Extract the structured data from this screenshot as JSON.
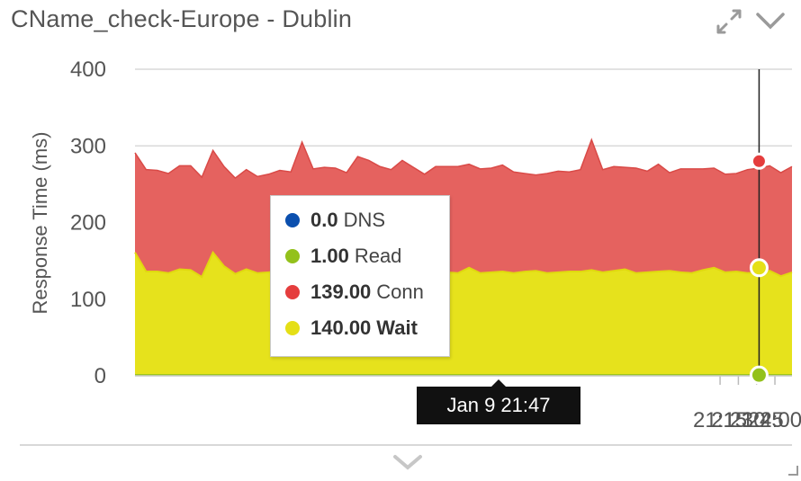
{
  "widget": {
    "title": "CName_check-Europe - Dublin",
    "expand_icon": "expand-arrows-icon",
    "collapse_icon": "chevron-down-icon",
    "footer_icon": "chevron-down-icon",
    "resize_icon": "resize-corner-icon"
  },
  "tooltip": {
    "rows": [
      {
        "value": "0.0",
        "label": "DNS",
        "color": "#0b4fae"
      },
      {
        "value": "1.00",
        "label": "Read",
        "color": "#93c11b"
      },
      {
        "value": "139.00",
        "label": "Conn",
        "color": "#e53d3d"
      },
      {
        "value": "140.00",
        "label": "Wait",
        "color": "#e5df16"
      }
    ]
  },
  "crosshair": {
    "label": "Jan 9 21:47",
    "points": {
      "dns": 0,
      "read": 1,
      "wait": 140,
      "conn": 139
    }
  },
  "colors": {
    "wait_fill": "#e6e21c",
    "conn_fill": "#e5625f",
    "read_line": "#93c11b",
    "grid": "#d9d9d9",
    "axis_text": "#555555"
  },
  "chart_data": {
    "type": "area",
    "stacked": true,
    "ylabel": "Response Time (ms)",
    "ylim": [
      0,
      400
    ],
    "yticks": [
      0,
      100,
      200,
      300,
      400
    ],
    "xticks": [
      "21:15",
      "21:30",
      "21:45",
      "22:00"
    ],
    "x_range_minutes": [
      795,
      1334
    ],
    "x_start_minute": 794,
    "x_step_minutes": 1,
    "series": [
      {
        "name": "DNS",
        "values": [
          0,
          0,
          0,
          0,
          0,
          0,
          0,
          0,
          0,
          0,
          0,
          0,
          0,
          0,
          0,
          0,
          0,
          0,
          0,
          0,
          0,
          0,
          0,
          0,
          0,
          0,
          0,
          0,
          0,
          0,
          0,
          0,
          0,
          0,
          0,
          0,
          0,
          0,
          0,
          0,
          0,
          0,
          0,
          0,
          0,
          0,
          0,
          0,
          0,
          0,
          0,
          0,
          0,
          0,
          0,
          0,
          0,
          0,
          0,
          0
        ]
      },
      {
        "name": "Read",
        "values": [
          1,
          1,
          1,
          1,
          1,
          1,
          1,
          1,
          1,
          1,
          1,
          1,
          1,
          1,
          1,
          1,
          1,
          1,
          1,
          1,
          1,
          1,
          1,
          1,
          1,
          1,
          1,
          1,
          1,
          1,
          1,
          1,
          1,
          1,
          1,
          1,
          1,
          1,
          1,
          1,
          1,
          1,
          1,
          1,
          1,
          1,
          1,
          1,
          1,
          1,
          1,
          1,
          1,
          1,
          1,
          1,
          1,
          1,
          1,
          1
        ]
      },
      {
        "name": "Wait",
        "values": [
          160,
          135,
          135,
          133,
          138,
          137,
          128,
          160,
          142,
          132,
          138,
          133,
          134,
          136,
          135,
          134,
          133,
          135,
          137,
          132,
          134,
          136,
          133,
          133,
          134,
          135,
          133,
          135,
          134,
          133,
          140,
          133,
          134,
          135,
          133,
          135,
          136,
          133,
          134,
          135,
          135,
          137,
          134,
          136,
          138,
          133,
          134,
          135,
          136,
          134,
          133,
          137,
          140,
          134,
          135,
          133,
          134,
          136,
          129,
          134
        ]
      },
      {
        "name": "Conn",
        "values": [
          130,
          133,
          132,
          130,
          135,
          136,
          130,
          133,
          130,
          125,
          130,
          126,
          128,
          131,
          130,
          170,
          136,
          136,
          133,
          132,
          151,
          144,
          139,
          135,
          146,
          136,
          129,
          137,
          138,
          139,
          135,
          136,
          136,
          139,
          132,
          128,
          125,
          130,
          132,
          130,
          133,
          170,
          134,
          136,
          133,
          137,
          132,
          140,
          128,
          135,
          136,
          132,
          130,
          128,
          128,
          135,
          136,
          137,
          135,
          138
        ]
      }
    ]
  }
}
